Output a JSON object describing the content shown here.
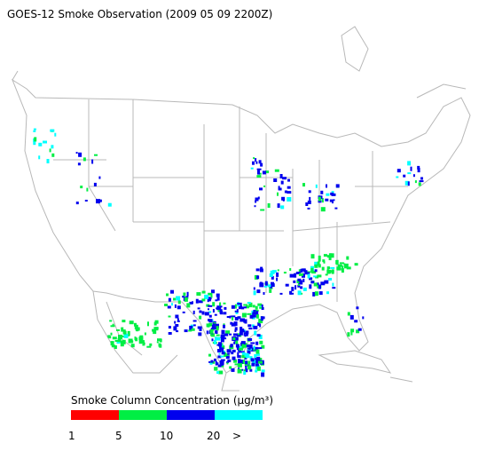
{
  "title": "GOES-12 Smoke Observation (2009 05 09  2200Z)",
  "legend": {
    "title": "Smoke Column Concentration (μg/m³)",
    "colors": [
      "#ff0000",
      "#00ee44",
      "#0000ee",
      "#00ffff"
    ],
    "labels": [
      "1",
      "5",
      "10",
      "20",
      ">"
    ]
  }
}
